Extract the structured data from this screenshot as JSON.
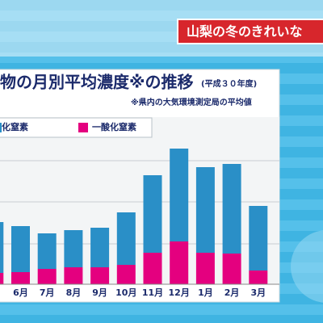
{
  "banner": "山梨の冬のきれいな",
  "chart_data": {
    "type": "bar",
    "stacked": true,
    "title": "物の月別平均濃度※の推移",
    "subtitle": "(平成３０年度)",
    "note": "※県内の大気環境測定局の平均値",
    "categories": [
      null,
      "6月",
      "7月",
      "8月",
      "9月",
      "10月",
      "11月",
      "12月",
      "1月",
      "2月",
      "3月"
    ],
    "series": [
      {
        "name": "一酸化窒素",
        "color": "#e4007f",
        "values": [
          14,
          15,
          19,
          21,
          21,
          24,
          39,
          53,
          39,
          38,
          17
        ]
      },
      {
        "name": "化窒素",
        "color": "#2a8fc7",
        "values": [
          63,
          57,
          44,
          46,
          49,
          65,
          96,
          115,
          106,
          111,
          80
        ]
      }
    ],
    "ylim": [
      0,
      200
    ]
  }
}
